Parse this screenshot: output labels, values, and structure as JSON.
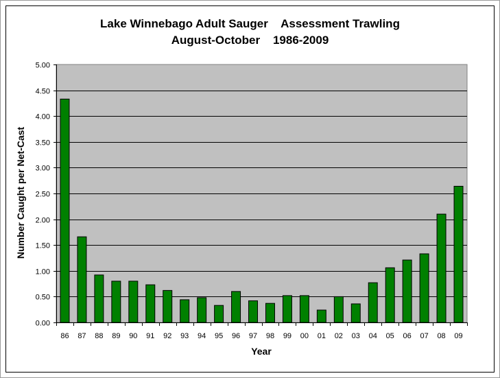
{
  "chart_data": {
    "type": "bar",
    "title": "Lake Winnebago Adult Sauger    Assessment Trawling",
    "subtitle": "August-October    1986-2009",
    "xlabel": "Year",
    "ylabel": "Number Caught per Net-Cast",
    "categories": [
      "86",
      "87",
      "88",
      "89",
      "90",
      "91",
      "92",
      "93",
      "94",
      "95",
      "96",
      "97",
      "98",
      "99",
      "00",
      "01",
      "02",
      "03",
      "04",
      "05",
      "06",
      "07",
      "08",
      "09"
    ],
    "values": [
      4.33,
      1.66,
      0.92,
      0.8,
      0.8,
      0.73,
      0.62,
      0.44,
      0.48,
      0.33,
      0.6,
      0.42,
      0.37,
      0.52,
      0.52,
      0.24,
      0.5,
      0.36,
      0.77,
      1.06,
      1.21,
      1.33,
      2.1,
      2.64
    ],
    "ylim": [
      0,
      5
    ],
    "yticks": [
      "0.00",
      "0.50",
      "1.00",
      "1.50",
      "2.00",
      "2.50",
      "3.00",
      "3.50",
      "4.00",
      "4.50",
      "5.00"
    ],
    "grid": true,
    "colors": {
      "bar": "#008000",
      "plot_background": "#c0c0c0",
      "gridline": "#000000"
    }
  }
}
